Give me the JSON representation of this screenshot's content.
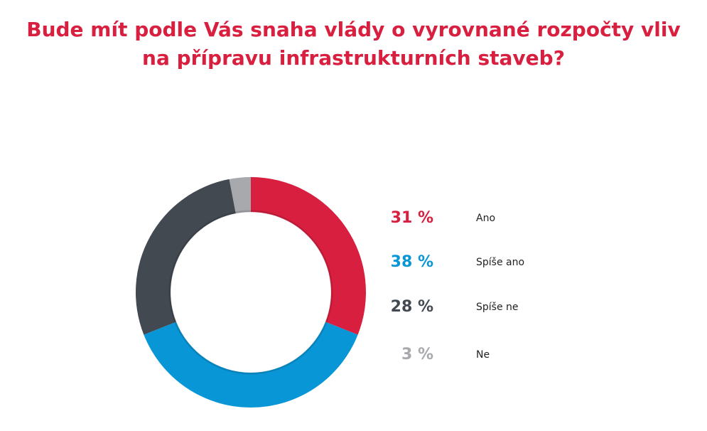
{
  "title_line1": "Bude mít podle Vás snaha vlády o vyrovnané rozpočty vliv",
  "title_line2": "na přípravu infrastrukturních staveb?",
  "legend": [
    {
      "pct": "31 %",
      "label": "Ano"
    },
    {
      "pct": "38 %",
      "label": "Spíše ano"
    },
    {
      "pct": "28 %",
      "label": "Spíše ne"
    },
    {
      "pct": "3 %",
      "label": "Ne"
    }
  ],
  "chart_data": {
    "type": "pie",
    "categories": [
      "Ano",
      "Spíše ano",
      "Spíše ne",
      "Ne"
    ],
    "values": [
      31,
      38,
      28,
      3
    ],
    "colors": [
      "#D81F3F",
      "#0896D7",
      "#424951",
      "#A7A9AC"
    ],
    "legend_position": "right"
  }
}
